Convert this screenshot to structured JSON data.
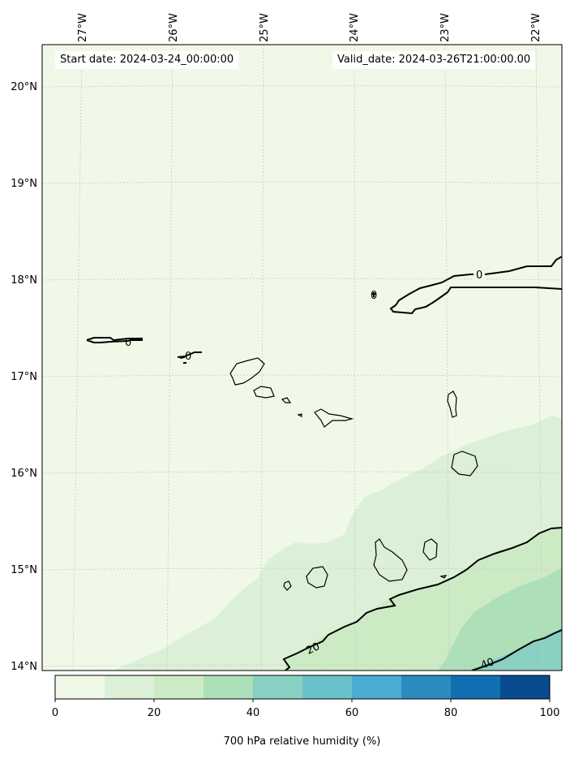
{
  "header": {
    "start_label": "Start date: 2024-03-24_00:00:00",
    "valid_label": "Valid_date: 2024-03-26T21:00:00.00"
  },
  "map": {
    "variable": "700 hPa relative humidity (%)",
    "lon_labels": [
      "27°W",
      "26°W",
      "25°W",
      "24°W",
      "23°W",
      "22°W"
    ],
    "lat_labels": [
      "20°N",
      "19°N",
      "18°N",
      "17°N",
      "16°N",
      "15°N",
      "14°N"
    ],
    "contour_labels": [
      "0",
      "0",
      "0",
      "0",
      "20",
      "40"
    ],
    "grid": true,
    "colors": {
      "level_0_10": "#f0f9e8",
      "level_10_20": "#dbf0d6",
      "level_20_30": "#ccebc5",
      "level_30_40": "#addfb8",
      "level_40_50": "#89d0c2"
    }
  },
  "colorbar": {
    "ticks": [
      "0",
      "20",
      "40",
      "60",
      "80",
      "100"
    ],
    "colors": [
      "#f0f9e8",
      "#dbf0d6",
      "#ccebc5",
      "#addfb8",
      "#89d0c2",
      "#6ac1cb",
      "#4bacd1",
      "#2c8bbe",
      "#106fb0",
      "#084b8f"
    ]
  }
}
